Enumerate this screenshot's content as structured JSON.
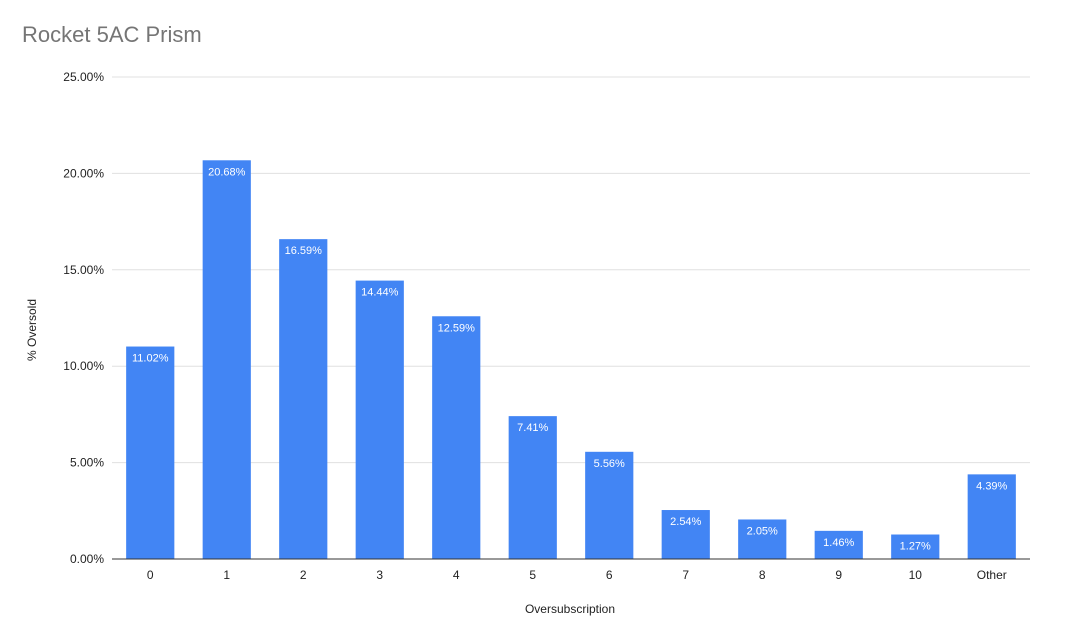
{
  "chart_data": {
    "type": "bar",
    "title": "Rocket 5AC Prism",
    "xlabel": "Oversubscription",
    "ylabel": "% Oversold",
    "categories": [
      "0",
      "1",
      "2",
      "3",
      "4",
      "5",
      "6",
      "7",
      "8",
      "9",
      "10",
      "Other"
    ],
    "values": [
      11.02,
      20.68,
      16.59,
      14.44,
      12.59,
      7.41,
      5.56,
      2.54,
      2.05,
      1.46,
      1.27,
      4.39
    ],
    "data_labels": [
      "11.02%",
      "20.68%",
      "16.59%",
      "14.44%",
      "12.59%",
      "7.41%",
      "5.56%",
      "2.54%",
      "2.05%",
      "1.46%",
      "1.27%",
      "4.39%"
    ],
    "ylim": [
      0,
      25
    ],
    "yticks": [
      0,
      5,
      10,
      15,
      20,
      25
    ],
    "ytick_labels": [
      "0.00%",
      "5.00%",
      "10.00%",
      "15.00%",
      "20.00%",
      "25.00%"
    ],
    "grid": true,
    "legend": "none",
    "bar_color": "#4285f4",
    "grid_color": "#e0e0e0"
  }
}
